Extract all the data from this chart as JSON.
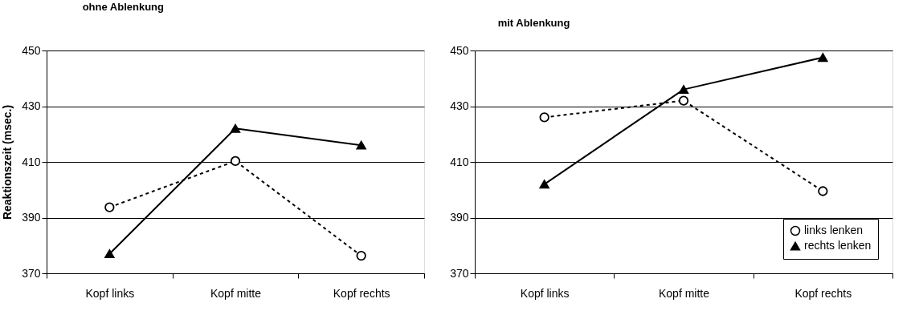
{
  "chart_data": [
    {
      "type": "line",
      "title": "ohne Ablenkung",
      "ylabel": "Reaktionszeit (msec.)",
      "categories": [
        "Kopf links",
        "Kopf mitte",
        "Kopf rechts"
      ],
      "ylim": [
        370,
        450
      ],
      "yticks": [
        370,
        390,
        410,
        430,
        450
      ],
      "grid": "y",
      "series": [
        {
          "color": "#000000",
          "marker": "circle",
          "line_style": "dashed",
          "values": [
            393.7,
            410.3,
            376.3
          ]
        },
        {
          "color": "#000000",
          "marker": "triangle",
          "line_style": "solid",
          "values": [
            377,
            422,
            416
          ]
        }
      ]
    },
    {
      "type": "line",
      "title": "mit Ablenkung",
      "categories": [
        "Kopf links",
        "Kopf mitte",
        "Kopf rechts"
      ],
      "ylim": [
        370,
        450
      ],
      "yticks": [
        370,
        390,
        410,
        430,
        450
      ],
      "grid": "y",
      "legend": "bottom right",
      "series": [
        {
          "name": "links lenken",
          "color": "#000000",
          "marker": "circle",
          "line_style": "dashed",
          "values": [
            426,
            432,
            399.5
          ]
        },
        {
          "name": "rechts lenken",
          "color": "#000000",
          "marker": "triangle",
          "line_style": "solid",
          "values": [
            402,
            436,
            447.5
          ]
        }
      ]
    }
  ]
}
